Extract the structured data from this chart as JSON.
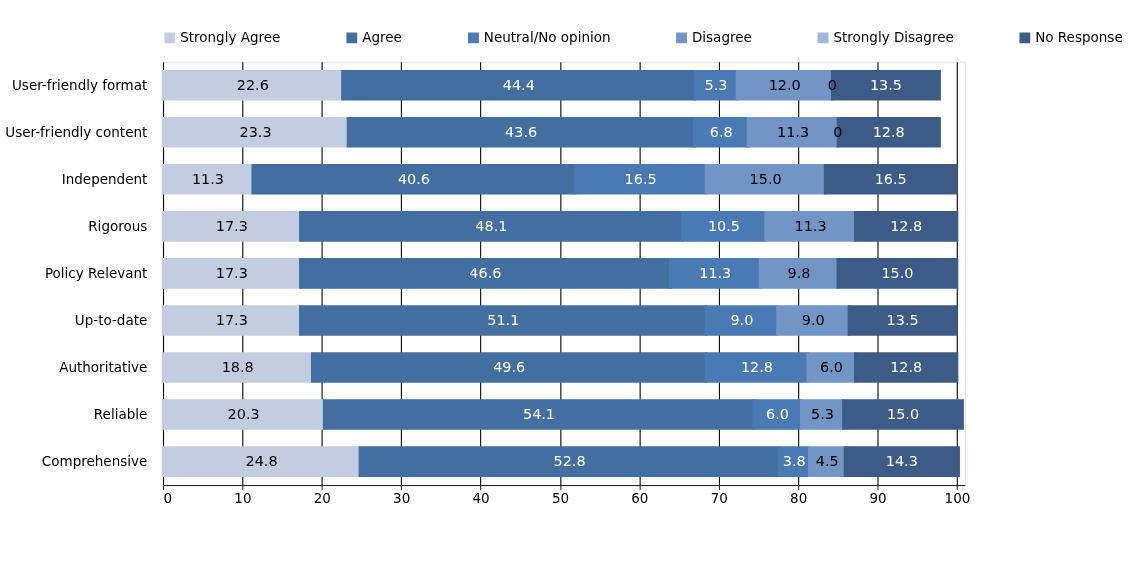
{
  "chart_data": {
    "type": "bar",
    "orientation": "horizontal",
    "stacked": true,
    "grid": "x",
    "legend": "top",
    "categories": [
      "User-friendly format",
      "User-friendly content",
      "Independent",
      "Rigorous",
      "Policy Relevant",
      "Up-to-date",
      "Authoritative",
      "Reliable",
      "Comprehensive"
    ],
    "series": [
      {
        "name": "Strongly Agree",
        "color": "#c3cde0",
        "values": [
          22.6,
          23.3,
          11.3,
          17.3,
          17.3,
          17.3,
          18.8,
          20.3,
          24.8
        ],
        "value_labels": [
          "22.6",
          "23.3",
          "11.3",
          "17.3",
          "17.3",
          "17.3",
          "18.8",
          "20.3",
          "24.8"
        ]
      },
      {
        "name": "Agree",
        "color": "#436ea0",
        "values": [
          44.4,
          43.6,
          40.6,
          48.1,
          46.6,
          51.1,
          49.6,
          54.1,
          52.8
        ],
        "value_labels": [
          "44.4",
          "43.6",
          "40.6",
          "48.1",
          "46.6",
          "51.1",
          "49.6",
          "54.1",
          "52.8"
        ]
      },
      {
        "name": "Neutral/No opinion",
        "color": "#4a7ab3",
        "values": [
          5.3,
          6.8,
          16.5,
          10.5,
          11.3,
          9.0,
          12.8,
          6.0,
          3.8
        ],
        "value_labels": [
          "5.3",
          "6.8",
          "16.5",
          "10.5",
          "11.3",
          "9.0",
          "12.8",
          "6.0",
          "3.8"
        ]
      },
      {
        "name": "Disagree",
        "color": "#7395c6",
        "values": [
          12.0,
          11.3,
          15.0,
          11.3,
          9.8,
          9.0,
          6.0,
          5.3,
          4.5
        ],
        "value_labels": [
          "12.0",
          "11.3",
          "15.0",
          "11.3",
          "9.8",
          "9.0",
          "6.0",
          "5.3",
          "4.5"
        ]
      },
      {
        "name": "Strongly Disagree",
        "color": "#a3b6d8",
        "values": [
          0,
          0,
          null,
          null,
          null,
          null,
          null,
          null,
          null
        ],
        "value_labels": [
          "0",
          "0",
          null,
          null,
          null,
          null,
          null,
          null,
          null
        ]
      },
      {
        "name": "No Response",
        "color": "#3c5b87",
        "values": [
          13.5,
          12.8,
          16.5,
          12.8,
          15.0,
          13.5,
          12.8,
          15.0,
          14.3
        ],
        "value_labels": [
          "13.5",
          "12.8",
          "16.5",
          "12.8",
          "15.0",
          "13.5",
          "12.8",
          "15.0",
          "14.3"
        ]
      }
    ],
    "xlim": [
      0,
      101
    ],
    "xticks": [
      0,
      10,
      20,
      30,
      40,
      50,
      60,
      70,
      80,
      90,
      100
    ]
  }
}
